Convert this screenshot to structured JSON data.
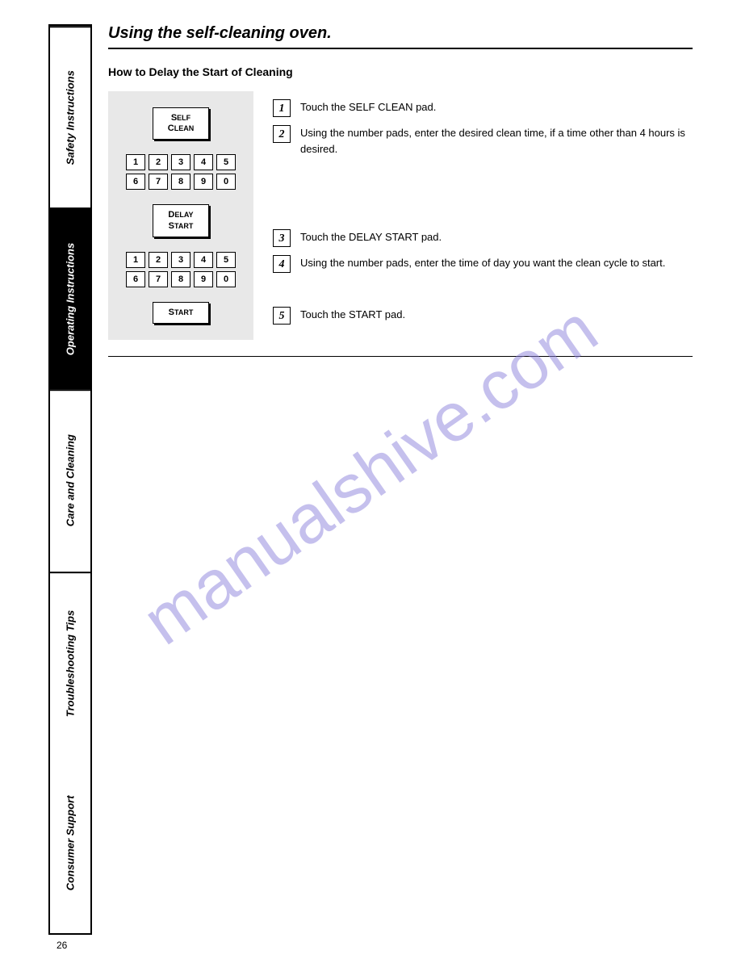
{
  "sidebar": {
    "items": [
      {
        "label": "Safety Instructions"
      },
      {
        "label": "Operating Instructions"
      },
      {
        "label": "Care and Cleaning"
      },
      {
        "label": "Troubleshooting Tips"
      },
      {
        "label": "Consumer Support"
      }
    ]
  },
  "title": "Using the self-cleaning oven.",
  "subtitle": "How to Delay the Start of Cleaning",
  "panel": {
    "btn1": "SELF\nCLEAN",
    "btn2": "DELAY\nSTART",
    "btn3": "START",
    "keys_row1": [
      "1",
      "2",
      "3",
      "4",
      "5"
    ],
    "keys_row2": [
      "6",
      "7",
      "8",
      "9",
      "0"
    ]
  },
  "steps": [
    {
      "n": "1",
      "text": "Touch the SELF CLEAN pad."
    },
    {
      "n": "2",
      "text": "Using the number pads, enter the desired clean time, if a time other than 4 hours is desired."
    },
    {
      "n": "3",
      "text": "Touch the DELAY START pad."
    },
    {
      "n": "4",
      "text": "Using the number pads, enter the time of day you want the clean cycle to start."
    },
    {
      "n": "5",
      "text": "Touch the START pad."
    }
  ],
  "watermark": "manualshive.com",
  "page": "26"
}
